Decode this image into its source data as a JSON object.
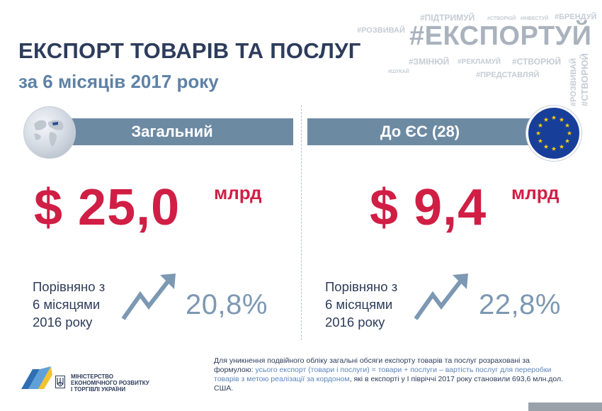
{
  "header": {
    "title": "ЕКСПОРТ ТОВАРІВ ТА ПОСЛУГ",
    "subtitle": "за 6 місяців 2017 року"
  },
  "hashtag_cloud": {
    "main": "#ЕКСПОРТУЙ",
    "tags": [
      "#ПІДТРИМУЙ",
      "#СТВОРЮЙ",
      "#ІНВЕСТУЙ",
      "#БРЕНДУЙ",
      "#РОЗВИВАЙ",
      "#ЗМІНЮЙ",
      "#РЕКЛАМУЙ",
      "#СТВОРЮЙ",
      "#ШУКАЙ",
      "#ПРЕДСТАВЛЯЙ"
    ],
    "vertical": [
      "#РОЗВИВАЙ",
      "#СТВОРЮЙ"
    ]
  },
  "total": {
    "label": "Загальний",
    "amount": "$ 25,0",
    "unit": "млрд",
    "comparison": [
      "Порівняно з",
      "6 місяцями",
      "2016 року"
    ],
    "growth": "20,8%"
  },
  "eu": {
    "label": "До ЄС (28)",
    "amount": "$ 9,4",
    "unit": "млрд",
    "comparison": [
      "Порівняно з",
      "6 місяцями",
      "2016 року"
    ],
    "growth": "22,8%"
  },
  "footnote": {
    "part1": "Для уникнення подвійного обліку загальні обсяги експорту товарів та послуг розраховані за формулою: ",
    "formula": "усього експорт (товари і послуги) = товари + послуги – вартість послуг для переробки товарів з метою реалізації за кордоном",
    "part2": ", які в експорті у І півріччі 2017 року становили 693,6 млн.дол. США."
  },
  "ministry": {
    "line1": "МІНІСТЕРСТВО",
    "line2": "ЕКОНОМІЧНОГО РОЗВИТКУ",
    "line3": "І ТОРГІВЛІ УКРАЇНИ"
  },
  "colors": {
    "navy": "#2d3c5b",
    "blue_subtitle": "#5e81a6",
    "banner": "#6d8aa3",
    "accent_red": "#d01e45",
    "percent": "#7c98b3",
    "eu_blue": "#173f9a",
    "eu_star": "#ffd200"
  },
  "icons": [
    "globe-icon",
    "eu-flag-icon",
    "trend-up-arrow-icon",
    "ministry-logo-icon",
    "trident-icon"
  ]
}
